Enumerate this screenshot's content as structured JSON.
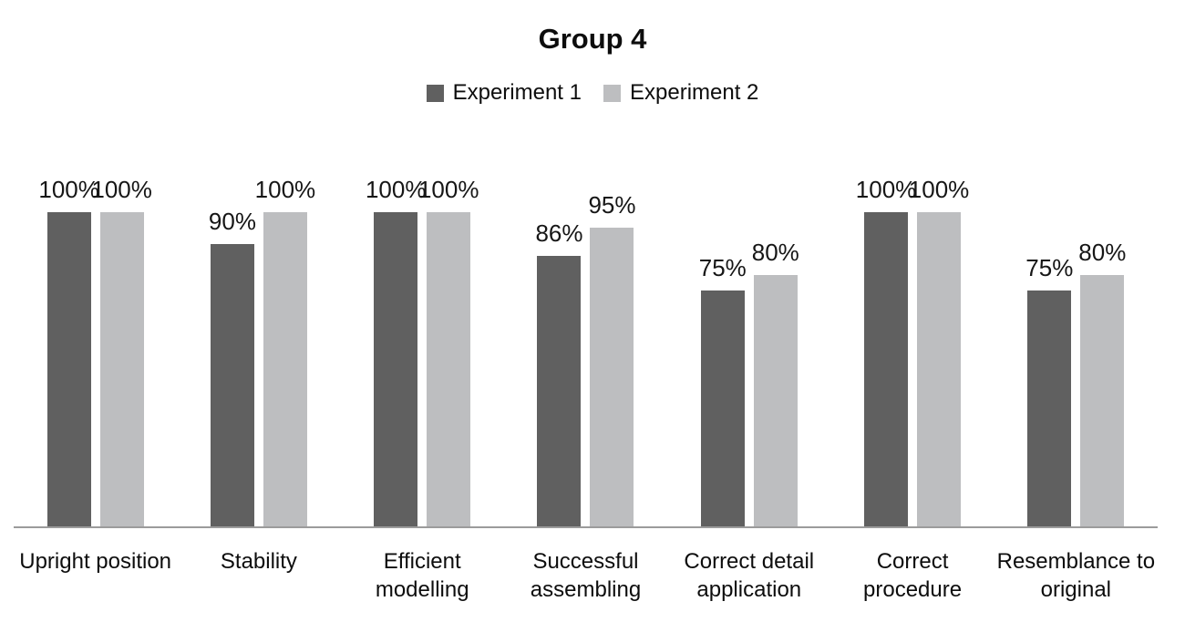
{
  "title": "Group 4",
  "legend": {
    "position": "top",
    "items": [
      {
        "label": "Experiment 1",
        "color": "#606060"
      },
      {
        "label": "Experiment 2",
        "color": "#bdbec0"
      }
    ]
  },
  "chart_data": {
    "type": "bar",
    "title": "Group 4",
    "categories": [
      "Upright position",
      "Stability",
      "Efficient modelling",
      "Successful assembling",
      "Correct detail application",
      "Correct procedure",
      "Resemblance to original"
    ],
    "series": [
      {
        "name": "Experiment 1",
        "color": "#606060",
        "values": [
          100,
          90,
          100,
          86,
          75,
          100,
          75
        ]
      },
      {
        "name": "Experiment 2",
        "color": "#bdbec0",
        "values": [
          100,
          100,
          100,
          95,
          80,
          100,
          80
        ]
      }
    ],
    "value_suffix": "%",
    "data_labels": true,
    "ylim": [
      0,
      100
    ],
    "grid": false,
    "legend_position": "top",
    "xlabel": "",
    "ylabel": ""
  },
  "colors": {
    "axis_line": "#9b9b9b",
    "value_label_text": "#161616"
  }
}
